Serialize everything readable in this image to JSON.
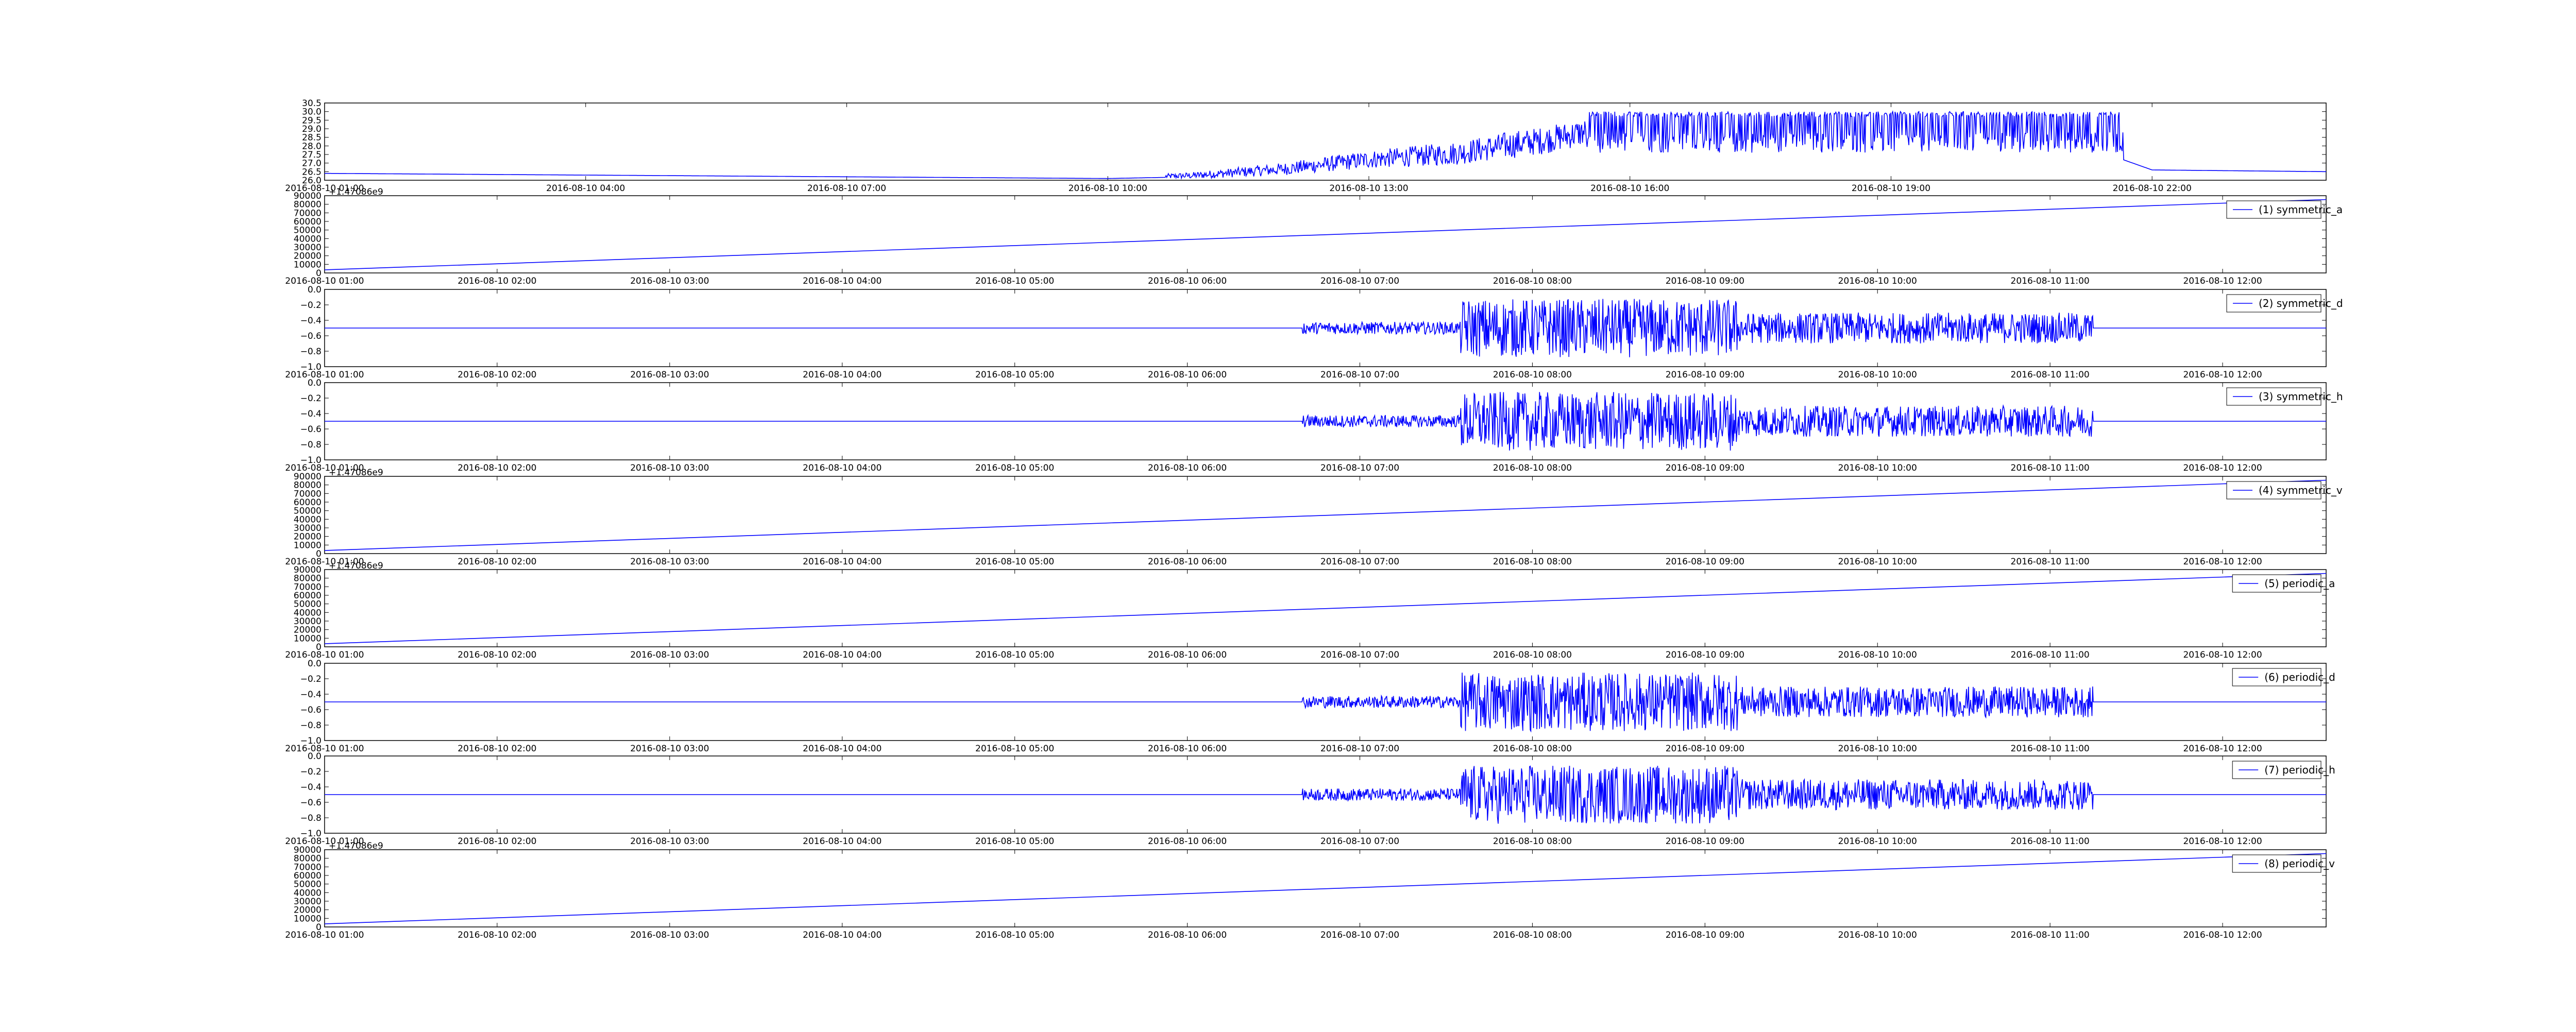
{
  "figure": {
    "line_color": "#0000ff",
    "panels": [
      {
        "id": "temperature",
        "legend": "",
        "x_start": "2016-08-10 01:00",
        "x_end": "2016-08-11 00:00",
        "y_range": [
          26.0,
          30.5
        ],
        "y_ticks": [
          "30.5",
          "30.0",
          "29.5",
          "29.0",
          "28.5",
          "28.0",
          "27.5",
          "27.0",
          "26.5",
          "26.0"
        ],
        "x_ticks": [
          "2016-08-10 01:00",
          "2016-08-10 04:00",
          "2016-08-10 07:00",
          "2016-08-10 10:00",
          "2016-08-10 13:00",
          "2016-08-10 16:00",
          "2016-08-10 19:00",
          "2016-08-10 22:00"
        ],
        "offset_text": ""
      },
      {
        "id": "symmetric_a",
        "legend": "(1) symmetric_a",
        "x_start": "2016-08-10 01:00",
        "x_end": "2016-08-10 12:36",
        "y_range": [
          0,
          90000
        ],
        "y_ticks": [
          "90000",
          "80000",
          "70000",
          "60000",
          "50000",
          "40000",
          "30000",
          "20000",
          "10000",
          "0"
        ],
        "x_ticks": [
          "2016-08-10 01:00",
          "2016-08-10 02:00",
          "2016-08-10 03:00",
          "2016-08-10 04:00",
          "2016-08-10 05:00",
          "2016-08-10 06:00",
          "2016-08-10 07:00",
          "2016-08-10 08:00",
          "2016-08-10 09:00",
          "2016-08-10 10:00",
          "2016-08-10 11:00",
          "2016-08-10 12:00"
        ],
        "offset_text": "+1.47086e9"
      },
      {
        "id": "symmetric_d",
        "legend": "(2) symmetric_d",
        "x_start": "2016-08-10 01:00",
        "x_end": "2016-08-10 12:36",
        "y_range": [
          -1.0,
          0.0
        ],
        "y_ticks": [
          "0.0",
          "−0.2",
          "−0.4",
          "−0.6",
          "−0.8",
          "−1.0"
        ],
        "x_ticks": [
          "2016-08-10 01:00",
          "2016-08-10 02:00",
          "2016-08-10 03:00",
          "2016-08-10 04:00",
          "2016-08-10 05:00",
          "2016-08-10 06:00",
          "2016-08-10 07:00",
          "2016-08-10 08:00",
          "2016-08-10 09:00",
          "2016-08-10 10:00",
          "2016-08-10 11:00",
          "2016-08-10 12:00"
        ],
        "offset_text": ""
      },
      {
        "id": "symmetric_h",
        "legend": "(3) symmetric_h",
        "x_start": "2016-08-10 01:00",
        "x_end": "2016-08-10 12:36",
        "y_range": [
          -1.0,
          0.0
        ],
        "y_ticks": [
          "0.0",
          "−0.2",
          "−0.4",
          "−0.6",
          "−0.8",
          "−1.0"
        ],
        "x_ticks": [
          "2016-08-10 01:00",
          "2016-08-10 02:00",
          "2016-08-10 03:00",
          "2016-08-10 04:00",
          "2016-08-10 05:00",
          "2016-08-10 06:00",
          "2016-08-10 07:00",
          "2016-08-10 08:00",
          "2016-08-10 09:00",
          "2016-08-10 10:00",
          "2016-08-10 11:00",
          "2016-08-10 12:00"
        ],
        "offset_text": ""
      },
      {
        "id": "symmetric_v",
        "legend": "(4) symmetric_v",
        "x_start": "2016-08-10 01:00",
        "x_end": "2016-08-10 12:36",
        "y_range": [
          0,
          90000
        ],
        "y_ticks": [
          "90000",
          "80000",
          "70000",
          "60000",
          "50000",
          "40000",
          "30000",
          "20000",
          "10000",
          "0"
        ],
        "x_ticks": [
          "2016-08-10 01:00",
          "2016-08-10 02:00",
          "2016-08-10 03:00",
          "2016-08-10 04:00",
          "2016-08-10 05:00",
          "2016-08-10 06:00",
          "2016-08-10 07:00",
          "2016-08-10 08:00",
          "2016-08-10 09:00",
          "2016-08-10 10:00",
          "2016-08-10 11:00",
          "2016-08-10 12:00"
        ],
        "offset_text": "+1.47086e9"
      },
      {
        "id": "periodic_a",
        "legend": "(5) periodic_a",
        "x_start": "2016-08-10 01:00",
        "x_end": "2016-08-10 12:36",
        "y_range": [
          0,
          90000
        ],
        "y_ticks": [
          "90000",
          "80000",
          "70000",
          "60000",
          "50000",
          "40000",
          "30000",
          "20000",
          "10000",
          "0"
        ],
        "x_ticks": [
          "2016-08-10 01:00",
          "2016-08-10 02:00",
          "2016-08-10 03:00",
          "2016-08-10 04:00",
          "2016-08-10 05:00",
          "2016-08-10 06:00",
          "2016-08-10 07:00",
          "2016-08-10 08:00",
          "2016-08-10 09:00",
          "2016-08-10 10:00",
          "2016-08-10 11:00",
          "2016-08-10 12:00"
        ],
        "offset_text": "+1.47086e9"
      },
      {
        "id": "periodic_d",
        "legend": "(6) periodic_d",
        "x_start": "2016-08-10 01:00",
        "x_end": "2016-08-10 12:36",
        "y_range": [
          -1.0,
          0.0
        ],
        "y_ticks": [
          "0.0",
          "−0.2",
          "−0.4",
          "−0.6",
          "−0.8",
          "−1.0"
        ],
        "x_ticks": [
          "2016-08-10 01:00",
          "2016-08-10 02:00",
          "2016-08-10 03:00",
          "2016-08-10 04:00",
          "2016-08-10 05:00",
          "2016-08-10 06:00",
          "2016-08-10 07:00",
          "2016-08-10 08:00",
          "2016-08-10 09:00",
          "2016-08-10 10:00",
          "2016-08-10 11:00",
          "2016-08-10 12:00"
        ],
        "offset_text": ""
      },
      {
        "id": "periodic_h",
        "legend": "(7) periodic_h",
        "x_start": "2016-08-10 01:00",
        "x_end": "2016-08-10 12:36",
        "y_range": [
          -1.0,
          0.0
        ],
        "y_ticks": [
          "0.0",
          "−0.2",
          "−0.4",
          "−0.6",
          "−0.8",
          "−1.0"
        ],
        "x_ticks": [
          "2016-08-10 01:00",
          "2016-08-10 02:00",
          "2016-08-10 03:00",
          "2016-08-10 04:00",
          "2016-08-10 05:00",
          "2016-08-10 06:00",
          "2016-08-10 07:00",
          "2016-08-10 08:00",
          "2016-08-10 09:00",
          "2016-08-10 10:00",
          "2016-08-10 11:00",
          "2016-08-10 12:00"
        ],
        "offset_text": ""
      },
      {
        "id": "periodic_v",
        "legend": "(8) periodic_v",
        "x_start": "2016-08-10 01:00",
        "x_end": "2016-08-10 12:36",
        "y_range": [
          0,
          90000
        ],
        "y_ticks": [
          "90000",
          "80000",
          "70000",
          "60000",
          "50000",
          "40000",
          "30000",
          "20000",
          "10000",
          "0"
        ],
        "x_ticks": [
          "2016-08-10 01:00",
          "2016-08-10 02:00",
          "2016-08-10 03:00",
          "2016-08-10 04:00",
          "2016-08-10 05:00",
          "2016-08-10 06:00",
          "2016-08-10 07:00",
          "2016-08-10 08:00",
          "2016-08-10 09:00",
          "2016-08-10 10:00",
          "2016-08-10 11:00",
          "2016-08-10 12:00"
        ],
        "offset_text": "+1.47086e9"
      }
    ]
  },
  "chart_data": [
    {
      "type": "line",
      "title": "",
      "xlabel": "",
      "ylabel": "",
      "xlim": [
        "2016-08-10 01:00",
        "2016-08-11 00:00"
      ],
      "ylim": [
        26.0,
        30.5
      ],
      "grid": false,
      "series": [
        {
          "x": [
            "2016-08-10 01:00",
            "2016-08-10 04:00",
            "2016-08-10 07:00",
            "2016-08-10 10:00",
            "2016-08-10 11:00",
            "2016-08-10 12:00",
            "2016-08-10 13:00",
            "2016-08-10 14:00",
            "2016-08-10 15:00",
            "2016-08-10 16:00",
            "2016-08-10 17:00",
            "2016-08-10 18:00",
            "2016-08-10 19:00",
            "2016-08-10 20:00",
            "2016-08-10 21:00",
            "2016-08-10 21:40",
            "2016-08-10 22:00",
            "2016-08-11 00:00"
          ],
          "y": [
            26.4,
            26.3,
            26.2,
            26.1,
            26.2,
            26.5,
            27.0,
            27.3,
            28.0,
            29.0,
            29.2,
            29.1,
            29.2,
            29.0,
            28.8,
            27.2,
            26.6,
            26.5
          ]
        }
      ]
    },
    {
      "type": "line",
      "xlim": [
        "2016-08-10 01:00",
        "2016-08-10 12:36"
      ],
      "ylim": [
        0,
        90000
      ],
      "offset": "+1.47086e9",
      "legend_position": "top-right",
      "series": [
        {
          "name": "(1) symmetric_a",
          "x": [
            "2016-08-10 01:00",
            "2016-08-10 12:36"
          ],
          "y": [
            3600,
            85500
          ]
        }
      ]
    },
    {
      "type": "line",
      "xlim": [
        "2016-08-10 01:00",
        "2016-08-10 12:36"
      ],
      "ylim": [
        -1.0,
        0.0
      ],
      "legend_position": "top-right",
      "series": [
        {
          "name": "(2) symmetric_d",
          "baseline": -0.5,
          "active_from": "2016-08-10 06:40",
          "active_to": "2016-08-10 11:15",
          "min": -0.93,
          "max": -0.1
        }
      ]
    },
    {
      "type": "line",
      "xlim": [
        "2016-08-10 01:00",
        "2016-08-10 12:36"
      ],
      "ylim": [
        -1.0,
        0.0
      ],
      "legend_position": "top-right",
      "series": [
        {
          "name": "(3) symmetric_h",
          "baseline": -0.5,
          "active_from": "2016-08-10 06:40",
          "active_to": "2016-08-10 11:15",
          "min": -0.93,
          "max": -0.1
        }
      ]
    },
    {
      "type": "line",
      "xlim": [
        "2016-08-10 01:00",
        "2016-08-10 12:36"
      ],
      "ylim": [
        0,
        90000
      ],
      "offset": "+1.47086e9",
      "legend_position": "top-right",
      "series": [
        {
          "name": "(4) symmetric_v",
          "x": [
            "2016-08-10 01:00",
            "2016-08-10 12:36"
          ],
          "y": [
            3600,
            85500
          ]
        }
      ]
    },
    {
      "type": "line",
      "xlim": [
        "2016-08-10 01:00",
        "2016-08-10 12:36"
      ],
      "ylim": [
        0,
        90000
      ],
      "offset": "+1.47086e9",
      "legend_position": "top-right",
      "series": [
        {
          "name": "(5) periodic_a",
          "x": [
            "2016-08-10 01:00",
            "2016-08-10 12:36"
          ],
          "y": [
            3600,
            85500
          ]
        }
      ]
    },
    {
      "type": "line",
      "xlim": [
        "2016-08-10 01:00",
        "2016-08-10 12:36"
      ],
      "ylim": [
        -1.0,
        0.0
      ],
      "legend_position": "top-right",
      "series": [
        {
          "name": "(6) periodic_d",
          "baseline": -0.5,
          "active_from": "2016-08-10 06:40",
          "active_to": "2016-08-10 11:15",
          "min": -0.93,
          "max": -0.1
        }
      ]
    },
    {
      "type": "line",
      "xlim": [
        "2016-08-10 01:00",
        "2016-08-10 12:36"
      ],
      "ylim": [
        -1.0,
        0.0
      ],
      "legend_position": "top-right",
      "series": [
        {
          "name": "(7) periodic_h",
          "baseline": -0.5,
          "active_from": "2016-08-10 06:40",
          "active_to": "2016-08-10 11:15",
          "min": -0.93,
          "max": -0.1
        }
      ]
    },
    {
      "type": "line",
      "xlim": [
        "2016-08-10 01:00",
        "2016-08-10 12:36"
      ],
      "ylim": [
        0,
        90000
      ],
      "offset": "+1.47086e9",
      "legend_position": "top-right",
      "series": [
        {
          "name": "(8) periodic_v",
          "x": [
            "2016-08-10 01:00",
            "2016-08-10 12:36"
          ],
          "y": [
            3600,
            85500
          ]
        }
      ]
    }
  ]
}
